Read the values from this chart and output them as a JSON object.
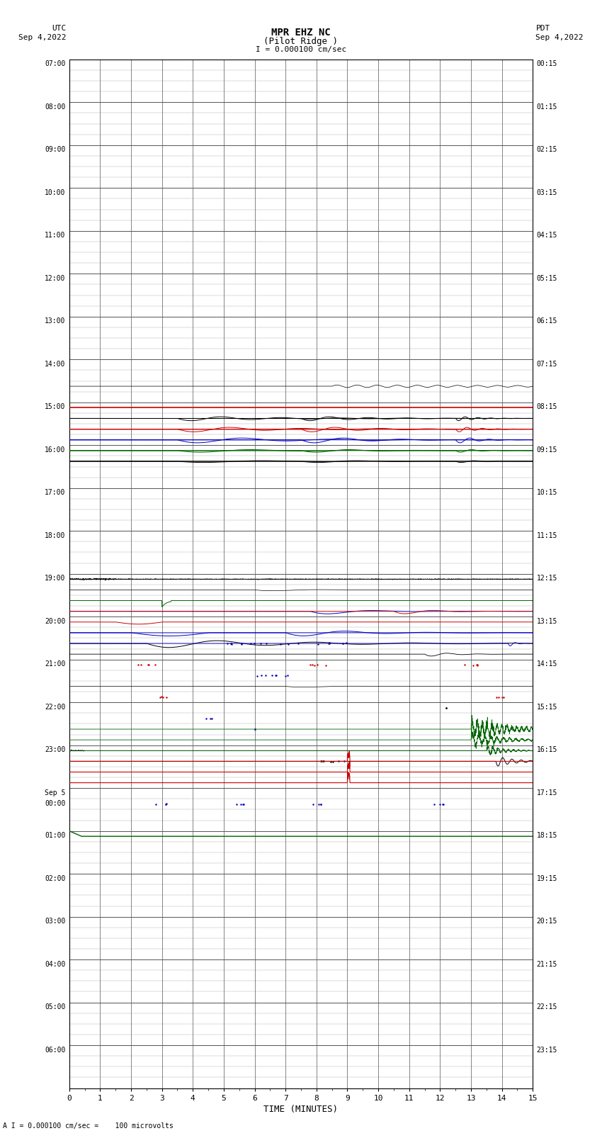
{
  "title_line1": "MPR EHZ NC",
  "title_line2": "(Pilot Ridge )",
  "scale_label": "I = 0.000100 cm/sec",
  "left_timezone": "UTC",
  "left_date": "Sep 4,2022",
  "right_timezone": "PDT",
  "right_date": "Sep 4,2022",
  "bottom_label": "TIME (MINUTES)",
  "bottom_note": "A I = 0.000100 cm/sec =    100 microvolts",
  "left_times_major": [
    "07:00",
    "08:00",
    "09:00",
    "10:00",
    "11:00",
    "12:00",
    "13:00",
    "14:00",
    "15:00",
    "16:00",
    "17:00",
    "18:00",
    "19:00",
    "20:00",
    "21:00",
    "22:00",
    "23:00",
    "Sep 5\n00:00",
    "01:00",
    "02:00",
    "03:00",
    "04:00",
    "05:00",
    "06:00"
  ],
  "left_times_rows": [
    0,
    4,
    8,
    12,
    16,
    20,
    24,
    28,
    32,
    36,
    40,
    44,
    48,
    52,
    56,
    60,
    64,
    68,
    72,
    76,
    80,
    84,
    88,
    92
  ],
  "right_times_major": [
    "00:15",
    "01:15",
    "02:15",
    "03:15",
    "04:15",
    "05:15",
    "06:15",
    "07:15",
    "08:15",
    "09:15",
    "10:15",
    "11:15",
    "12:15",
    "13:15",
    "14:15",
    "15:15",
    "16:15",
    "17:15",
    "18:15",
    "19:15",
    "20:15",
    "21:15",
    "22:15",
    "23:15"
  ],
  "right_times_rows": [
    0,
    4,
    8,
    12,
    16,
    20,
    24,
    28,
    32,
    36,
    40,
    44,
    48,
    52,
    56,
    60,
    64,
    68,
    72,
    76,
    80,
    84,
    88,
    92
  ],
  "num_rows": 96,
  "sub_rows": 4,
  "fig_width": 8.5,
  "fig_height": 16.13,
  "background_color": "#ffffff",
  "grid_color_major": "#555555",
  "grid_color_minor": "#aaaaaa",
  "trace_color_black": "#000000",
  "trace_color_red": "#cc0000",
  "trace_color_blue": "#0000bb",
  "trace_color_green": "#006600"
}
